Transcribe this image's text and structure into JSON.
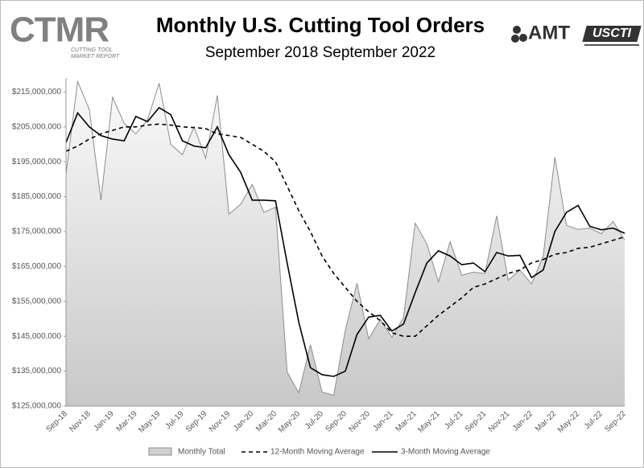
{
  "logos": {
    "ctmr": "CTMR",
    "ctmr_subtitle": [
      "CUTTING TOOL",
      "MARKET REPORT"
    ],
    "amt": "AMT",
    "uscti": "USCTI"
  },
  "chart_data": {
    "type": "line",
    "title": "Monthly U.S. Cutting Tool Orders",
    "subtitle": "September 2018 September 2022",
    "categories": [
      "Sep-18",
      null,
      "Nov-18",
      null,
      "Jan-19",
      null,
      "Mar-19",
      null,
      "May-19",
      null,
      "Jul-19",
      null,
      "Sep-19",
      null,
      "Nov-19",
      null,
      "Jan-20",
      null,
      "Mar-20",
      null,
      "May-20",
      null,
      "Jul-20",
      null,
      "Sep-20",
      null,
      "Nov-20",
      null,
      "Jan-21",
      null,
      "Mar-21",
      null,
      "May-21",
      null,
      "Jul-21",
      null,
      "Sep-21",
      null,
      "Nov-21",
      null,
      "Jan-22",
      null,
      "Mar-22",
      null,
      "May-22",
      null,
      "Jul-22",
      null,
      "Sep-22"
    ],
    "ylim": [
      125000000,
      219000000
    ],
    "yticks": [
      {
        "value": 125000000,
        "label": "$125,000,000"
      },
      {
        "value": 135000000,
        "label": "$135,000,000"
      },
      {
        "value": 145000000,
        "label": "$145,000,000"
      },
      {
        "value": 155000000,
        "label": "$155,000,000"
      },
      {
        "value": 165000000,
        "label": "$165,000,000"
      },
      {
        "value": 175000000,
        "label": "$175,000,000"
      },
      {
        "value": 185000000,
        "label": "$185,000,000"
      },
      {
        "value": 195000000,
        "label": "$195,000,000"
      },
      {
        "value": 205000000,
        "label": "$205,000,000"
      },
      {
        "value": 215000000,
        "label": "$215,000,000"
      }
    ],
    "grid": false,
    "legend": "bottom",
    "series": [
      {
        "name": "Monthly Total",
        "color": "#8c8c8c",
        "style": "area",
        "values": [
          191500000,
          218000000,
          210000000,
          184000000,
          213500000,
          206000000,
          203000000,
          207000000,
          217500000,
          200000000,
          197000000,
          205000000,
          196000000,
          214000000,
          180000000,
          182800000,
          188500000,
          180500000,
          182000000,
          134800000,
          128800000,
          142600000,
          129000000,
          128100000,
          146800000,
          160200000,
          144300000,
          149800000,
          144700000,
          150300000,
          177400000,
          171500000,
          160600000,
          172100000,
          162500000,
          163400000,
          163000000,
          179500000,
          161000000,
          164000000,
          160000000,
          168000000,
          196300000,
          176800000,
          175600000,
          176000000,
          174400000,
          177900000,
          172600000
        ]
      },
      {
        "name": "12-Month Moving Average",
        "color": "#000000",
        "style": "dashed",
        "values": [
          198000000,
          199500000,
          201500000,
          203000000,
          204000000,
          205000000,
          205000000,
          205500000,
          205800000,
          205500000,
          205000000,
          204800000,
          204500000,
          203000000,
          202500000,
          202000000,
          200000000,
          198000000,
          195000000,
          188000000,
          181000000,
          175000000,
          168000000,
          163000000,
          159000000,
          155000000,
          152000000,
          149500000,
          146000000,
          145000000,
          145000000,
          148000000,
          151000000,
          153500000,
          156000000,
          159000000,
          160000000,
          161500000,
          163000000,
          164000000,
          166000000,
          167000000,
          168500000,
          169000000,
          170200000,
          170500000,
          171500000,
          172500000,
          173500000
        ]
      },
      {
        "name": "3-Month Moving Average",
        "color": "#000000",
        "style": "solid",
        "values": [
          200500000,
          209000000,
          205000000,
          202500000,
          201500000,
          201000000,
          208000000,
          206500000,
          210500000,
          208500000,
          201000000,
          199500000,
          199000000,
          205000000,
          197000000,
          192000000,
          184000000,
          184000000,
          183800000,
          166000000,
          149000000,
          136000000,
          134000000,
          133500000,
          135000000,
          145500000,
          150500000,
          151000000,
          146500000,
          148500000,
          157500000,
          166000000,
          169500000,
          168000000,
          165500000,
          166000000,
          163500000,
          169000000,
          168000000,
          168200000,
          161800000,
          164000000,
          175000000,
          180500000,
          182500000,
          176500000,
          175500000,
          176000000,
          174500000
        ]
      }
    ]
  }
}
